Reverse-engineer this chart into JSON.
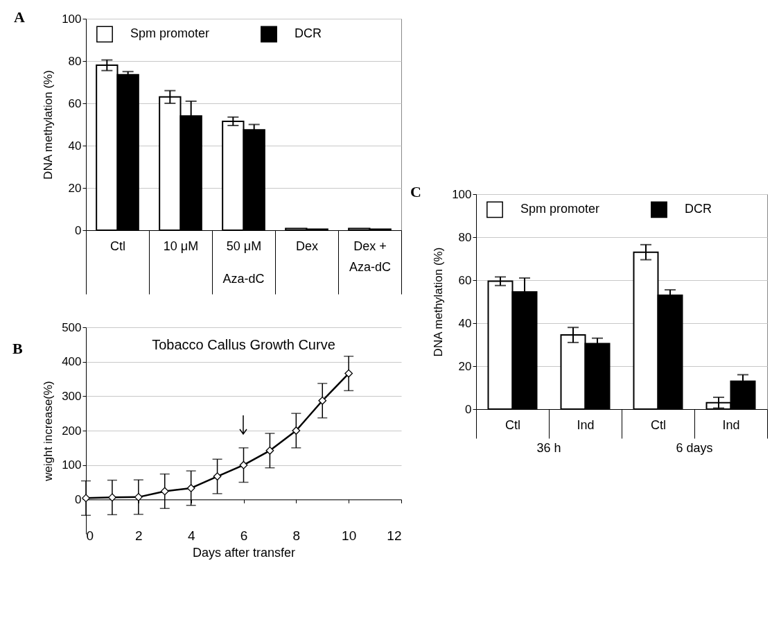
{
  "chart_data": [
    {
      "type": "bar",
      "ylabel": "DNA methylation (%)",
      "categories": [
        "Ctl",
        "10 μM",
        "50 μM",
        "Dex",
        "Dex +\nAza-dC"
      ],
      "series": [
        {
          "name": "Spm promoter",
          "color": "#ffffff",
          "values": [
            78,
            63,
            51.5,
            0.8,
            0.8
          ],
          "errors": [
            2.5,
            3,
            2,
            null,
            null
          ]
        },
        {
          "name": "DCR",
          "color": "#000000",
          "values": [
            73.5,
            54,
            47.5,
            0.5,
            0.5
          ],
          "errors": [
            1.5,
            7,
            2.5,
            null,
            null
          ]
        }
      ],
      "ylim": [
        0,
        100
      ],
      "yticks": [
        0,
        20,
        40,
        60,
        80,
        100
      ],
      "grid": "y",
      "legend": "top",
      "annotations": [
        "A",
        "Aza-dC"
      ]
    },
    {
      "type": "line",
      "title": "Tobacco Callus Growth Curve",
      "xlabel": "Days after transfer",
      "ylabel": "weight increase(%)",
      "x": [
        0,
        1,
        2,
        3,
        4,
        5,
        6,
        7,
        8,
        9,
        10
      ],
      "series": [
        {
          "color": "#000000",
          "values": [
            4,
            6,
            7,
            24,
            33,
            67,
            100,
            142,
            200,
            287,
            366
          ],
          "errors": [
            50,
            50,
            50,
            50,
            50,
            50,
            50,
            50,
            50,
            50,
            50
          ]
        }
      ],
      "xlim": [
        0,
        12
      ],
      "xticks": [
        0,
        2,
        4,
        6,
        8,
        10,
        12
      ],
      "ylim": [
        -100,
        500
      ],
      "yticks": [
        0,
        100,
        200,
        300,
        400,
        500
      ],
      "grid": "y",
      "marker": "diamond",
      "annotations": [
        "B"
      ]
    },
    {
      "type": "bar",
      "ylabel": "DNA methylation (%)",
      "categories": [
        "Ctl",
        "Ind",
        "Ctl",
        "Ind"
      ],
      "series": [
        {
          "name": "Spm promoter",
          "color": "#ffffff",
          "values": [
            59.5,
            34.5,
            73,
            3
          ],
          "errors": [
            2,
            3.5,
            3.5,
            2.5
          ]
        },
        {
          "name": "DCR",
          "color": "#000000",
          "values": [
            54.5,
            30.5,
            53,
            13
          ],
          "errors": [
            6.5,
            2.5,
            2.5,
            3
          ]
        }
      ],
      "ylim": [
        0,
        100
      ],
      "yticks": [
        0,
        20,
        40,
        60,
        80,
        100
      ],
      "grid": "y",
      "legend": "top",
      "annotations": [
        "C",
        "36 h",
        "6 days"
      ]
    }
  ]
}
